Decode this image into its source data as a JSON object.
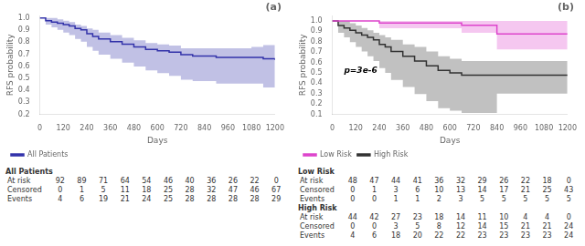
{
  "chart_data": [
    {
      "type": "step",
      "title": "(a)",
      "xlabel": "Days",
      "ylabel": "RFS probability",
      "xlim": [
        0,
        1200
      ],
      "ylim": [
        0.2,
        1.02
      ],
      "xticks": [
        0,
        120,
        240,
        360,
        480,
        600,
        720,
        840,
        960,
        1080,
        1200
      ],
      "yticks": [
        0.2,
        0.3,
        0.4,
        0.5,
        0.6,
        0.7,
        0.8,
        0.9,
        {
          "value": 1.0,
          "label": "1.0"
        }
      ],
      "grid": false,
      "legend": "lower left",
      "series": [
        {
          "name": "All Patients",
          "color": "#3333aa",
          "x": [
            0,
            30,
            60,
            90,
            120,
            150,
            180,
            210,
            240,
            270,
            300,
            360,
            420,
            480,
            540,
            600,
            660,
            720,
            780,
            840,
            900,
            960,
            1020,
            1080,
            1140,
            1200
          ],
          "values": [
            1.0,
            0.978,
            0.967,
            0.957,
            0.946,
            0.935,
            0.913,
            0.902,
            0.87,
            0.848,
            0.826,
            0.804,
            0.783,
            0.761,
            0.739,
            0.728,
            0.717,
            0.696,
            0.685,
            0.685,
            0.674,
            0.674,
            0.674,
            0.674,
            0.663,
            0.652
          ],
          "upper": [
            1.0,
            1.0,
            1.0,
            0.989,
            0.978,
            0.967,
            0.946,
            0.935,
            0.913,
            0.902,
            0.88,
            0.858,
            0.837,
            0.815,
            0.793,
            0.782,
            0.771,
            0.75,
            0.75,
            0.75,
            0.75,
            0.75,
            0.75,
            0.76,
            0.776,
            0.771
          ],
          "lower": [
            1.0,
            0.946,
            0.924,
            0.902,
            0.88,
            0.858,
            0.826,
            0.804,
            0.761,
            0.728,
            0.696,
            0.663,
            0.63,
            0.598,
            0.565,
            0.543,
            0.521,
            0.488,
            0.476,
            0.476,
            0.456,
            0.456,
            0.456,
            0.456,
            0.423,
            0.402
          ]
        }
      ],
      "table": [
        {
          "title": "All Patients",
          "rows": [
            {
              "label": "At risk",
              "values": [
                92,
                89,
                71,
                64,
                54,
                46,
                40,
                36,
                26,
                22,
                0
              ]
            },
            {
              "label": "Censored",
              "values": [
                0,
                1,
                5,
                11,
                18,
                25,
                28,
                32,
                47,
                46,
                67
              ]
            },
            {
              "label": "Events",
              "values": [
                4,
                6,
                19,
                21,
                24,
                25,
                28,
                28,
                28,
                28,
                29
              ]
            }
          ]
        }
      ]
    },
    {
      "type": "step",
      "title": "(b)",
      "xlabel": "Days",
      "ylabel": "RFS probability",
      "xlim": [
        0,
        1200
      ],
      "ylim": [
        0.1,
        1.05
      ],
      "xticks": [
        0,
        120,
        240,
        360,
        480,
        600,
        720,
        840,
        960,
        1080,
        1200
      ],
      "yticks": [
        0.1,
        0.2,
        0.3,
        0.4,
        0.5,
        0.6,
        0.7,
        0.8,
        0.9,
        {
          "value": 1.0,
          "label": "1.0"
        }
      ],
      "grid": false,
      "legend": "lower left",
      "annotations": [
        "p=3e-6"
      ],
      "series": [
        {
          "name": "Low Risk",
          "color": "#dd44cc",
          "x": [
            0,
            60,
            120,
            180,
            240,
            360,
            480,
            600,
            660,
            720,
            840,
            960,
            1080,
            1200
          ],
          "values": [
            1.0,
            1.0,
            1.0,
            1.0,
            0.98,
            0.98,
            0.98,
            0.98,
            0.958,
            0.958,
            0.875,
            0.875,
            0.875,
            0.875
          ],
          "upper": [
            1.0,
            1.0,
            1.0,
            1.0,
            1.0,
            1.0,
            1.0,
            1.0,
            1.0,
            1.0,
            1.0,
            1.0,
            1.0,
            1.0
          ],
          "lower": [
            1.0,
            1.0,
            1.0,
            1.0,
            0.929,
            0.929,
            0.929,
            0.929,
            0.885,
            0.885,
            0.726,
            0.726,
            0.726,
            0.726
          ]
        },
        {
          "name": "High Risk",
          "color": "#333333",
          "x": [
            0,
            30,
            60,
            90,
            120,
            150,
            180,
            210,
            240,
            270,
            300,
            360,
            420,
            480,
            540,
            600,
            660,
            720,
            780,
            840,
            960,
            1080,
            1200
          ],
          "values": [
            1.0,
            0.955,
            0.932,
            0.909,
            0.886,
            0.864,
            0.841,
            0.818,
            0.773,
            0.75,
            0.705,
            0.659,
            0.614,
            0.568,
            0.523,
            0.5,
            0.477,
            0.477,
            0.477,
            0.477,
            0.477,
            0.477,
            0.477
          ],
          "upper": [
            1.0,
            1.0,
            1.0,
            0.978,
            0.955,
            0.932,
            0.909,
            0.886,
            0.864,
            0.841,
            0.818,
            0.773,
            0.75,
            0.705,
            0.659,
            0.636,
            0.614,
            0.614,
            0.614,
            0.614,
            0.614,
            0.614,
            0.614
          ],
          "lower": [
            1.0,
            0.886,
            0.841,
            0.795,
            0.75,
            0.705,
            0.659,
            0.614,
            0.545,
            0.5,
            0.432,
            0.364,
            0.295,
            0.227,
            0.159,
            0.136,
            0.114,
            0.114,
            0.114,
            0.3,
            0.3,
            0.3,
            0.3
          ]
        }
      ],
      "table": [
        {
          "title": "Low Risk",
          "rows": [
            {
              "label": "At risk",
              "values": [
                48,
                47,
                44,
                41,
                36,
                32,
                29,
                26,
                22,
                18,
                0
              ]
            },
            {
              "label": "Censored",
              "values": [
                0,
                1,
                3,
                6,
                10,
                13,
                14,
                17,
                21,
                25,
                43
              ]
            },
            {
              "label": "Events",
              "values": [
                0,
                0,
                1,
                1,
                2,
                3,
                5,
                5,
                5,
                5,
                5
              ]
            }
          ]
        },
        {
          "title": "High Risk",
          "rows": [
            {
              "label": "At risk",
              "values": [
                44,
                42,
                27,
                23,
                18,
                14,
                11,
                10,
                4,
                4,
                0
              ]
            },
            {
              "label": "Censored",
              "values": [
                0,
                0,
                3,
                5,
                8,
                12,
                14,
                15,
                21,
                21,
                24
              ]
            },
            {
              "label": "Events",
              "values": [
                4,
                6,
                18,
                20,
                22,
                22,
                23,
                23,
                23,
                23,
                24
              ]
            }
          ]
        }
      ]
    }
  ]
}
